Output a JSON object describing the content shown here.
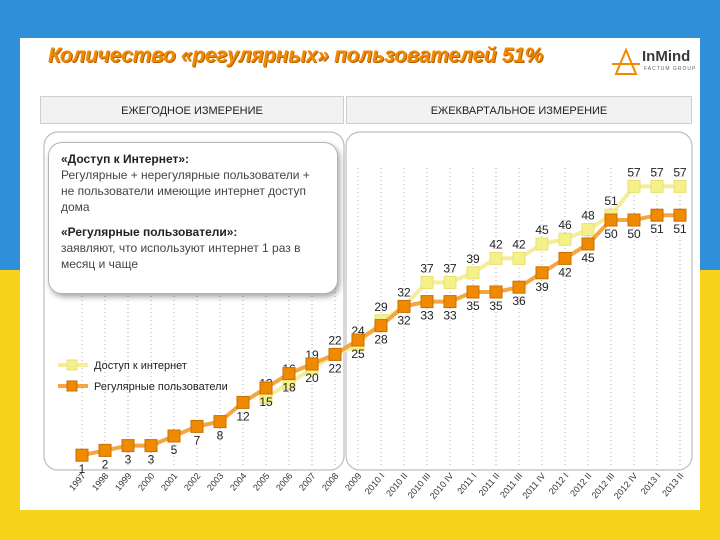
{
  "title": "Количество «регулярных» пользователей 51%",
  "logo": {
    "name": "InMind",
    "sub": "FACTUM GROUP"
  },
  "tabs": {
    "annual": "ЕЖЕГОДНОЕ ИЗМЕРЕНИЕ",
    "quarterly": "ЕЖЕКВАРТАЛЬНОЕ ИЗМЕРЕНИЕ"
  },
  "definitions": {
    "access_title": "«Доступ к Интернет»:",
    "access_text": "Регулярные + нерегулярные пользователи + не пользователи имеющие интернет доступ дома",
    "regular_title": "«Регулярные пользователи»:",
    "regular_text": "заявляют, что используют интернет 1 раз в месяц и чаще"
  },
  "colors": {
    "access": "#f6f08a",
    "regular": "#f08a00",
    "title": "#f08a00",
    "flag_blue": "#2f8fd8",
    "flag_yellow": "#f6d21a"
  },
  "chart_data": {
    "type": "line",
    "categories": [
      "1997",
      "1998",
      "1999",
      "2000",
      "2001",
      "2002",
      "2003",
      "2004",
      "2005",
      "2006",
      "2007",
      "2008",
      "2009",
      "2010 I",
      "2010 II",
      "2010 III",
      "2010 IV",
      "2011 I",
      "2011 II",
      "2011 III",
      "2011 IV",
      "2012 I",
      "2012 II",
      "2012 III",
      "2012 IV",
      "2013 I",
      "2013 II"
    ],
    "series": [
      {
        "name": "Доступ к интернет",
        "values": [
          null,
          null,
          null,
          null,
          null,
          null,
          null,
          null,
          13,
          16,
          19,
          22,
          24,
          29,
          32,
          37,
          37,
          39,
          42,
          42,
          45,
          46,
          48,
          51,
          57,
          57,
          57
        ]
      },
      {
        "name": "Регулярные пользователи",
        "values": [
          1,
          2,
          3,
          3,
          5,
          7,
          8,
          12,
          15,
          18,
          20,
          22,
          25,
          28,
          32,
          33,
          33,
          35,
          35,
          36,
          39,
          42,
          45,
          50,
          50,
          51,
          51
        ]
      }
    ],
    "legend": [
      "Доступ к интернет",
      "Регулярные пользователи"
    ],
    "legend_position": "bottom-left",
    "ylim": [
      0,
      60
    ]
  }
}
